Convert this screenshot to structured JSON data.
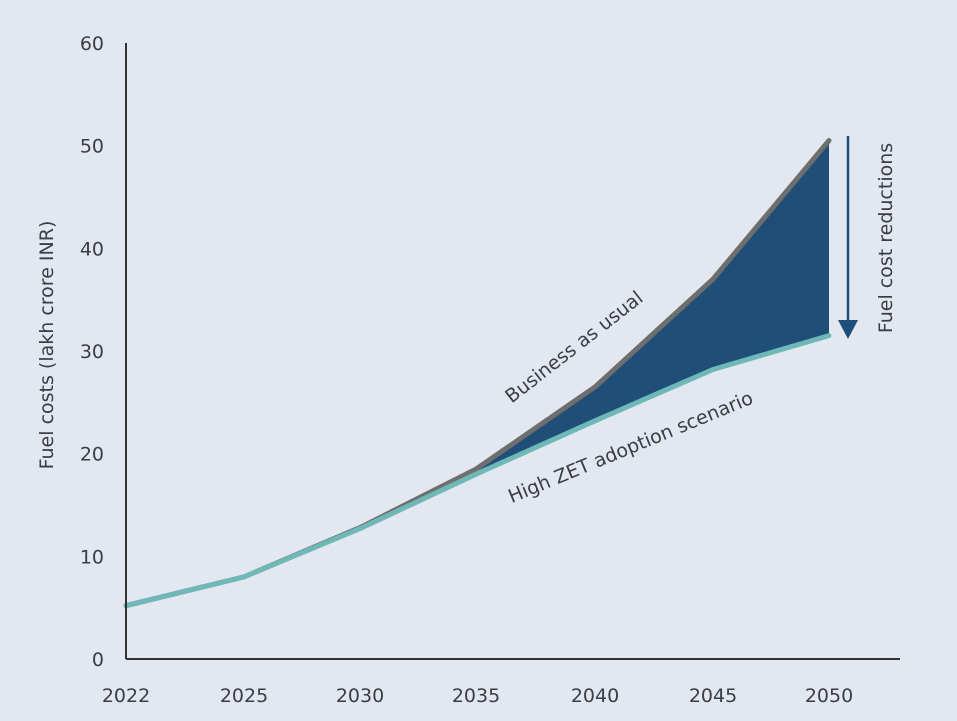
{
  "chart_data": {
    "type": "line",
    "xlabel": "",
    "ylabel": "Fuel costs (lakh crore INR)",
    "x": [
      "2022",
      "2025",
      "2030",
      "2035",
      "2040",
      "2045",
      "2050"
    ],
    "ylim": [
      0,
      60
    ],
    "yticks": [
      "0",
      "10",
      "20",
      "30",
      "40",
      "50",
      "60"
    ],
    "grid": false,
    "legend": "none",
    "series": [
      {
        "name": "Business as usual",
        "values": [
          5.2,
          8.0,
          12.8,
          18.5,
          26.5,
          37.0,
          50.5
        ],
        "color": "#6e6e6e"
      },
      {
        "name": "High ZET adoption scenario",
        "values": [
          5.2,
          8.0,
          12.7,
          18.0,
          23.2,
          28.2,
          31.5
        ],
        "color": "#6fb8b8"
      }
    ],
    "fill_between": {
      "color": "#1f4e79"
    },
    "annotation": {
      "text": "Fuel cost reductions",
      "color": "#1f4e79"
    }
  }
}
